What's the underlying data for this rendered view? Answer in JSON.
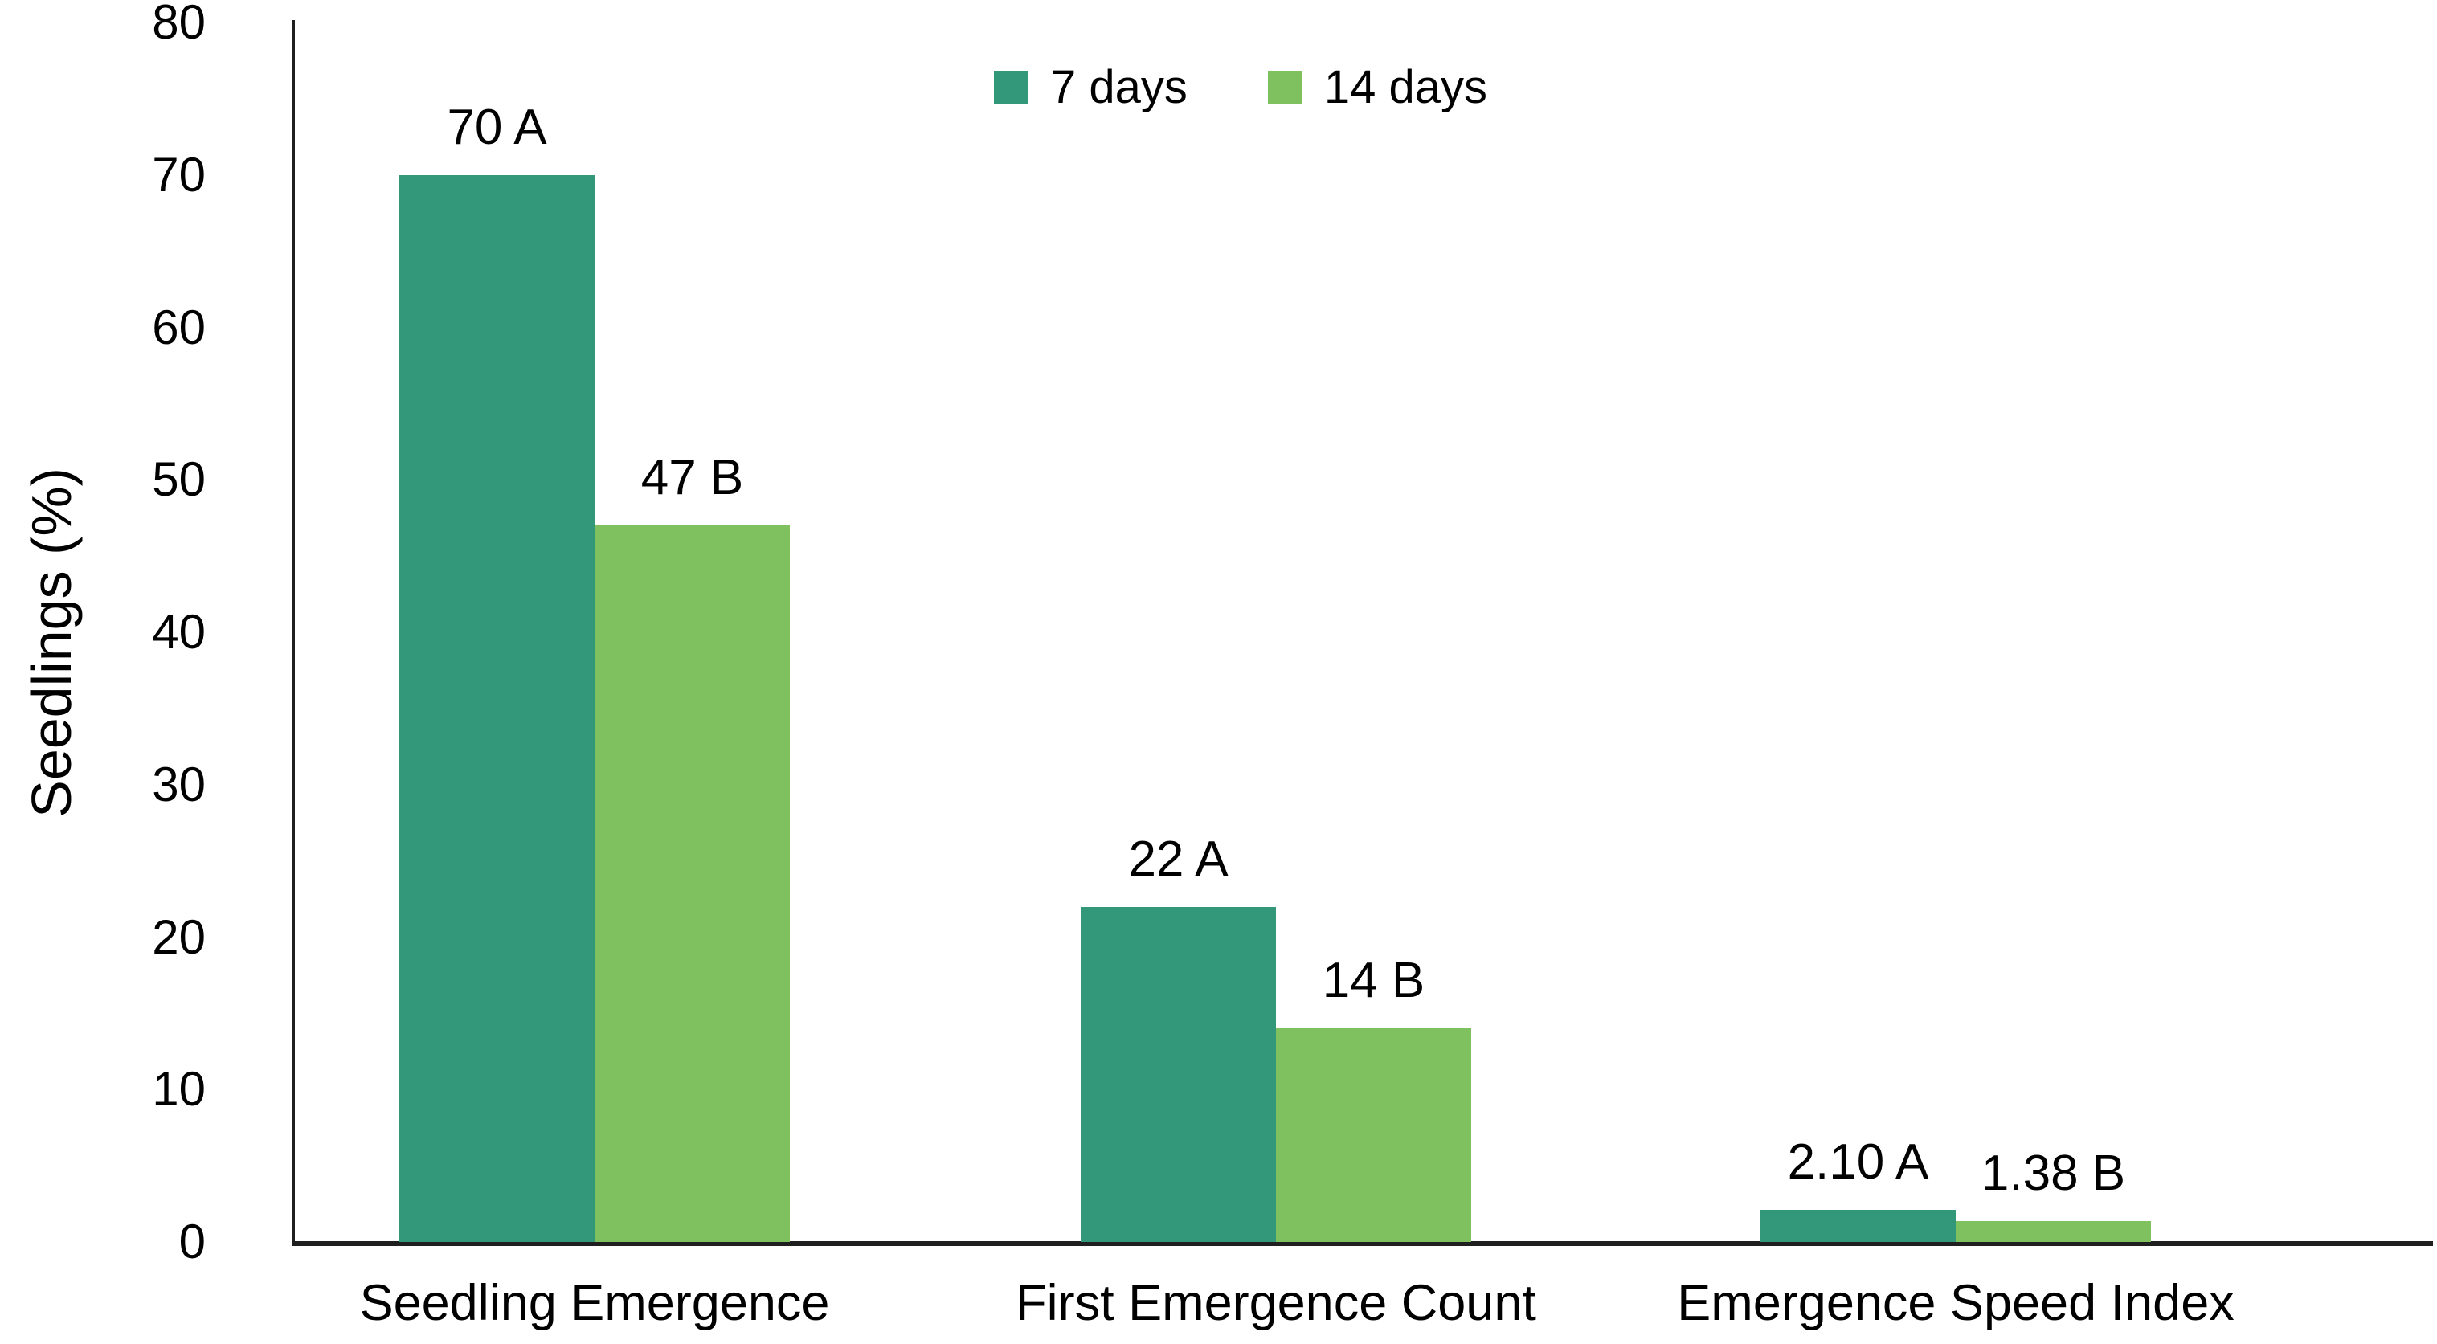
{
  "chart_data": {
    "type": "bar",
    "title": "",
    "xlabel": "",
    "ylabel": "Seedlings (%)",
    "categories": [
      "Seedling Emergence",
      "First Emergence Count",
      "Emergence Speed Index"
    ],
    "series": [
      {
        "name": "7 days",
        "color": "#33987A",
        "values": [
          70,
          22,
          2.1
        ],
        "data_labels": [
          "70 A",
          "22 A",
          "2.10 A"
        ]
      },
      {
        "name": "14 days",
        "color": "#7FC15E",
        "values": [
          47,
          14,
          1.38
        ],
        "data_labels": [
          "47 B",
          "14 B",
          "1.38 B"
        ]
      }
    ],
    "ylim": [
      0,
      80
    ],
    "yticks": [
      0,
      10,
      20,
      30,
      40,
      50,
      60,
      70,
      80
    ],
    "grid": false,
    "legend_position": "top-center",
    "axis_color": "#1f1f1f",
    "text_color": "#000000"
  }
}
